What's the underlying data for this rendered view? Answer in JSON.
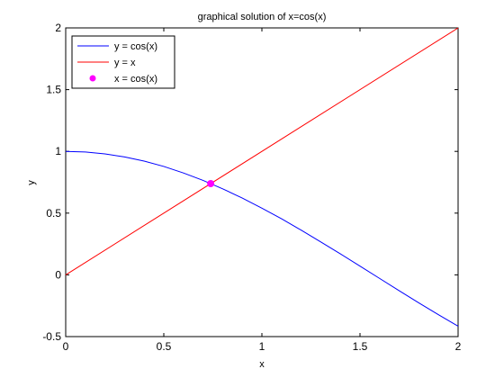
{
  "chart_data": {
    "type": "line",
    "title": "graphical solution of x=cos(x)",
    "xlabel": "x",
    "ylabel": "y",
    "xlim": [
      0,
      2
    ],
    "ylim": [
      -0.5,
      2
    ],
    "x_ticks": [
      0,
      0.5,
      1,
      1.5,
      2
    ],
    "y_ticks": [
      -0.5,
      0,
      0.5,
      1,
      1.5,
      2
    ],
    "x_tick_labels": [
      "0",
      "0.5",
      "1",
      "1.5",
      "2"
    ],
    "y_tick_labels": [
      "-0.5",
      "0",
      "0.5",
      "1",
      "1.5",
      "2"
    ],
    "grid": false,
    "legend_position": "top-left",
    "series": [
      {
        "name": "y = cos(x)",
        "color": "#0000ff",
        "x": [
          0,
          0.1,
          0.2,
          0.3,
          0.4,
          0.5,
          0.6,
          0.7,
          0.8,
          0.9,
          1.0,
          1.1,
          1.2,
          1.3,
          1.4,
          1.5,
          1.6,
          1.7,
          1.8,
          1.9,
          2.0
        ],
        "y": [
          1.0,
          0.995,
          0.98,
          0.955,
          0.921,
          0.878,
          0.825,
          0.765,
          0.697,
          0.622,
          0.54,
          0.454,
          0.362,
          0.267,
          0.17,
          0.071,
          -0.029,
          -0.129,
          -0.227,
          -0.323,
          -0.416
        ]
      },
      {
        "name": "y = x",
        "color": "#ff0000",
        "x": [
          0,
          2
        ],
        "y": [
          0,
          2
        ]
      },
      {
        "name": "x = cos(x)",
        "color": "#ff00ff",
        "marker": "circle",
        "x": [
          0.739
        ],
        "y": [
          0.739
        ]
      }
    ]
  }
}
